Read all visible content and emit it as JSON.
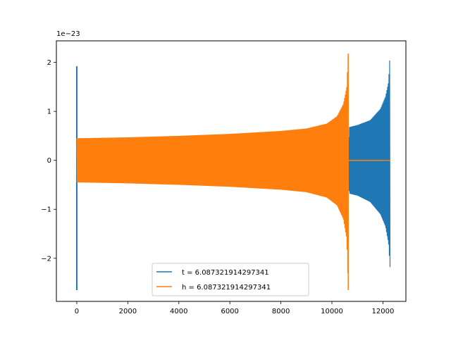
{
  "chart_data": {
    "type": "line",
    "title": "",
    "xlabel": "",
    "ylabel": "",
    "y_scale_label": "1e−23",
    "xlim": [
      -800,
      12900
    ],
    "ylim": [
      -2.88,
      2.44
    ],
    "xticks": [
      0,
      2000,
      4000,
      6000,
      8000,
      10000,
      12000
    ],
    "xtick_labels": [
      "0",
      "2000",
      "4000",
      "6000",
      "8000",
      "10000",
      "12000"
    ],
    "yticks": [
      -2,
      -1,
      0,
      1,
      2
    ],
    "ytick_labels": [
      "−2",
      "−1",
      "0",
      "1",
      "2"
    ],
    "grid": false,
    "legend_position": "lower-center",
    "series": [
      {
        "name": "t = 6.087321914297341",
        "color": "#1f77b4",
        "envelope": {
          "x": [
            0,
            10660,
            10680,
            11000,
            11500,
            11900,
            12100,
            12220,
            12280
          ],
          "upper": [
            0.45,
            0.45,
            0.68,
            0.72,
            0.82,
            1.05,
            1.3,
            1.6,
            2.2
          ],
          "lower": [
            -0.45,
            -0.45,
            -0.68,
            -0.72,
            -0.85,
            -1.1,
            -1.35,
            -1.7,
            -2.2
          ]
        },
        "spike": {
          "x": 0,
          "max": 1.92,
          "min": -2.65
        },
        "end_x": 12280
      },
      {
        "name": "h = 6.087321914297341",
        "color": "#ff7f0e",
        "envelope": {
          "x": [
            0,
            2000,
            4000,
            6000,
            8000,
            9000,
            9800,
            10200,
            10450,
            10580,
            10640
          ],
          "upper": [
            0.45,
            0.47,
            0.5,
            0.54,
            0.6,
            0.65,
            0.75,
            0.9,
            1.15,
            1.5,
            2.18
          ],
          "lower": [
            -0.45,
            -0.47,
            -0.5,
            -0.54,
            -0.6,
            -0.65,
            -0.76,
            -0.92,
            -1.2,
            -1.6,
            -2.65
          ]
        },
        "flat_after": {
          "from": 10660,
          "to": 12280,
          "value": 0
        }
      }
    ]
  }
}
